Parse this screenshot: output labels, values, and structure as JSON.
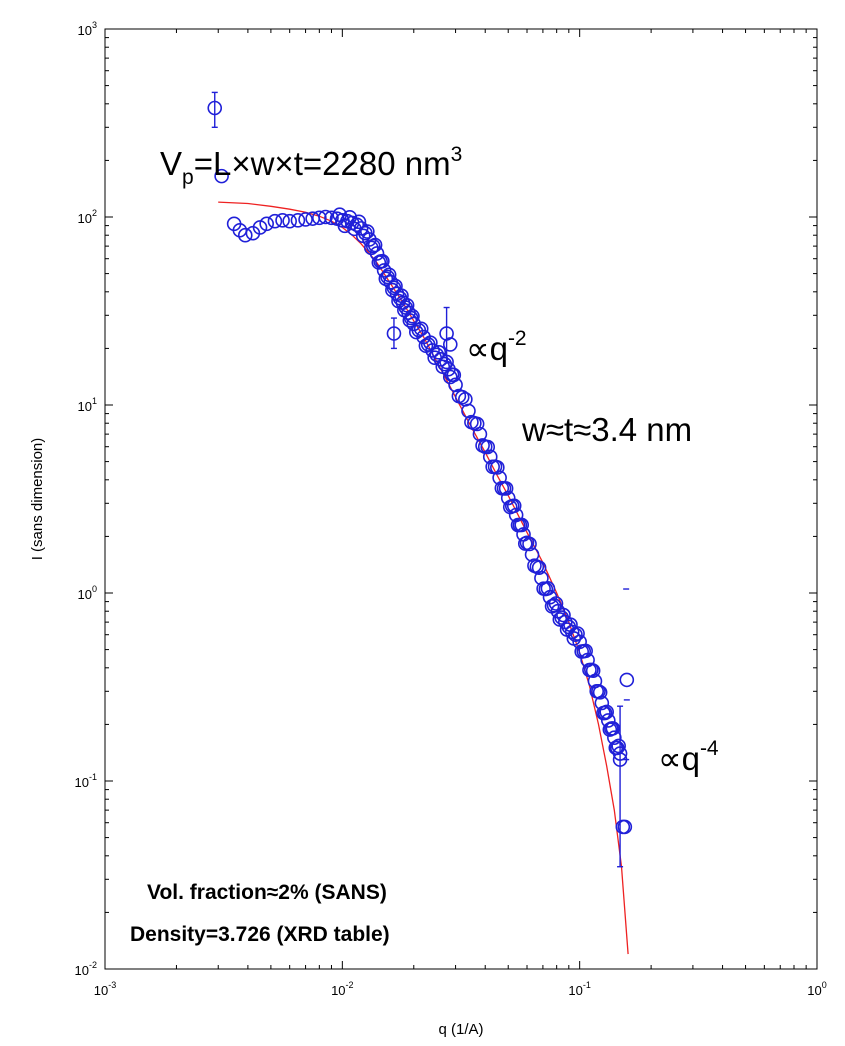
{
  "chart_data": {
    "type": "scatter",
    "title": "",
    "xlabel": "q (1/A)",
    "ylabel": "I (sans dimension)",
    "xscale": "log",
    "yscale": "log",
    "xlim": [
      0.001,
      1
    ],
    "ylim": [
      0.01,
      1000
    ],
    "grid": false,
    "x_ticks": [
      {
        "base": "10",
        "exp": "-3"
      },
      {
        "base": "10",
        "exp": "-2"
      },
      {
        "base": "10",
        "exp": "-1"
      },
      {
        "base": "10",
        "exp": "0"
      }
    ],
    "y_ticks": [
      {
        "base": "10",
        "exp": "-2"
      },
      {
        "base": "10",
        "exp": "-1"
      },
      {
        "base": "10",
        "exp": "0"
      },
      {
        "base": "10",
        "exp": "1"
      },
      {
        "base": "10",
        "exp": "2"
      },
      {
        "base": "10",
        "exp": "3"
      }
    ],
    "colors": {
      "data": "#2020d8",
      "fit": "#ee2222",
      "axis": "#000000"
    },
    "annotations": {
      "volume": {
        "main": "V",
        "sub": "p",
        "rest": "=L×w×t=2280 nm",
        "sup": "3"
      },
      "slope_q2": {
        "main": "∝q",
        "sup": "-2"
      },
      "width": "w≈t≈3.4 nm",
      "slope_q4": {
        "main": "∝q",
        "sup": "-4"
      },
      "vol_fraction": "Vol. fraction≈2% (SANS)",
      "density": "Density=3.726 (XRD table)"
    },
    "outliers": [
      {
        "x": 0.0029,
        "y": 380,
        "err": [
          300,
          460
        ]
      },
      {
        "x": 0.0031,
        "y": 165
      },
      {
        "x": 0.0165,
        "y": 24,
        "err": [
          20,
          29
        ]
      },
      {
        "x": 0.0275,
        "y": 24,
        "err": [
          17,
          33
        ]
      },
      {
        "x": 0.0285,
        "y": 21
      },
      {
        "x": 0.158,
        "y": 0.345
      },
      {
        "x": 0.155,
        "y": 0.057
      },
      {
        "x": 0.152,
        "y": 0.057
      },
      {
        "x": 0.148,
        "y": 0.13,
        "err": [
          0.035,
          0.25
        ]
      }
    ],
    "loose_errorbars": [
      {
        "x": 0.157,
        "y": 1.05
      },
      {
        "x": 0.158,
        "y": 0.27
      },
      {
        "x": 0.157,
        "y": 0.13
      }
    ],
    "series": [
      {
        "marker": "open-circle",
        "x": [
          0.0035,
          0.0037,
          0.0039,
          0.0042,
          0.0045,
          0.0048,
          0.0052,
          0.0056,
          0.006,
          0.0065,
          0.007,
          0.0075,
          0.008,
          0.0085,
          0.009,
          0.0095,
          0.01,
          0.0105,
          0.011,
          0.0115,
          0.012,
          0.0125,
          0.013,
          0.0135,
          0.014,
          0.0145,
          0.015,
          0.0155,
          0.016,
          0.0165,
          0.017,
          0.0175,
          0.018,
          0.0185,
          0.019,
          0.0195,
          0.02,
          0.021,
          0.022,
          0.023,
          0.024,
          0.025,
          0.026,
          0.027,
          0.028,
          0.029,
          0.03,
          0.032,
          0.034,
          0.036,
          0.038,
          0.04,
          0.042,
          0.044,
          0.046,
          0.048,
          0.05,
          0.052,
          0.054,
          0.056,
          0.058,
          0.06,
          0.063,
          0.066,
          0.069,
          0.072,
          0.075,
          0.078,
          0.081,
          0.084,
          0.087,
          0.09,
          0.093,
          0.096,
          0.1,
          0.104,
          0.108,
          0.112,
          0.116,
          0.12,
          0.124,
          0.128,
          0.132,
          0.136,
          0.14,
          0.144,
          0.148
        ],
        "y": [
          92,
          85,
          80,
          82,
          88,
          92,
          95,
          96,
          95,
          96,
          97,
          98,
          99,
          100,
          99,
          98,
          96,
          95,
          93,
          91,
          87,
          82,
          76,
          70,
          64,
          58,
          52,
          48,
          45,
          42,
          39,
          37,
          35,
          33,
          31,
          29,
          27,
          25,
          23,
          21,
          19.5,
          18.5,
          17.5,
          16.5,
          15.5,
          14.5,
          12.8,
          11.0,
          9.3,
          8.0,
          7.0,
          6.0,
          5.3,
          4.7,
          4.1,
          3.6,
          3.2,
          2.9,
          2.6,
          2.3,
          2.05,
          1.85,
          1.6,
          1.38,
          1.2,
          1.05,
          0.95,
          0.86,
          0.8,
          0.74,
          0.7,
          0.66,
          0.62,
          0.6,
          0.55,
          0.49,
          0.44,
          0.39,
          0.34,
          0.3,
          0.26,
          0.23,
          0.21,
          0.19,
          0.17,
          0.15,
          0.14
        ]
      },
      {
        "style": "line",
        "x": [
          0.003,
          0.004,
          0.005,
          0.006,
          0.007,
          0.008,
          0.009,
          0.01,
          0.011,
          0.012,
          0.013,
          0.014,
          0.015,
          0.016,
          0.018,
          0.02,
          0.022,
          0.025,
          0.028,
          0.03,
          0.035,
          0.04,
          0.045,
          0.05,
          0.06,
          0.07,
          0.08,
          0.09,
          0.1,
          0.11,
          0.12,
          0.13,
          0.14,
          0.15,
          0.16
        ],
        "y": [
          120,
          118,
          114,
          110,
          106,
          101,
          95,
          88,
          80,
          72,
          64,
          57,
          50,
          44,
          35,
          28,
          23,
          17,
          13,
          11,
          7.6,
          5.6,
          4.2,
          3.3,
          2.1,
          1.45,
          1.0,
          0.7,
          0.48,
          0.32,
          0.2,
          0.12,
          0.07,
          0.035,
          0.012
        ]
      }
    ]
  }
}
